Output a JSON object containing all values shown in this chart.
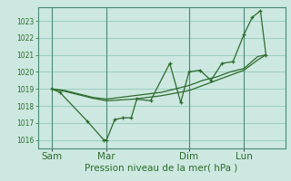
{
  "background_color": "#cce8e0",
  "grid_color": "#88c4b4",
  "line_color": "#2d6b2d",
  "marker_color": "#2d6b2d",
  "xlabel": "Pression niveau de la mer( hPa )",
  "ylim": [
    1015.5,
    1023.8
  ],
  "yticks": [
    1016,
    1017,
    1018,
    1019,
    1020,
    1021,
    1022,
    1023
  ],
  "xtick_labels": [
    "Sam",
    "Mar",
    "Dim",
    "Lun"
  ],
  "xtick_positions": [
    0.5,
    2.5,
    5.5,
    7.5
  ],
  "xlim": [
    0.0,
    9.0
  ],
  "series1_x": [
    0.5,
    0.8,
    1.8,
    2.4,
    2.5,
    2.8,
    3.1,
    3.4,
    3.6,
    4.1,
    4.8,
    5.2,
    5.5,
    5.9,
    6.3,
    6.7,
    7.1,
    7.5,
    7.8,
    8.1,
    8.3
  ],
  "series1_y": [
    1019.0,
    1018.8,
    1017.1,
    1016.0,
    1016.0,
    1017.2,
    1017.3,
    1017.3,
    1018.4,
    1018.3,
    1020.5,
    1018.2,
    1020.0,
    1020.1,
    1019.5,
    1020.5,
    1020.6,
    1022.2,
    1023.2,
    1023.6,
    1021.0
  ],
  "series2_x": [
    0.5,
    1.0,
    1.5,
    2.0,
    2.5,
    3.0,
    3.5,
    4.0,
    4.5,
    5.0,
    5.5,
    6.0,
    6.5,
    7.0,
    7.5,
    8.0,
    8.3
  ],
  "series2_y": [
    1019.0,
    1018.9,
    1018.7,
    1018.5,
    1018.4,
    1018.5,
    1018.6,
    1018.7,
    1018.8,
    1019.0,
    1019.2,
    1019.5,
    1019.7,
    1020.0,
    1020.2,
    1020.9,
    1021.0
  ],
  "series3_x": [
    0.5,
    1.0,
    1.5,
    2.0,
    2.5,
    3.0,
    3.5,
    4.0,
    4.5,
    5.0,
    5.5,
    6.0,
    6.5,
    7.0,
    7.5,
    8.0,
    8.3
  ],
  "series3_y": [
    1019.0,
    1018.85,
    1018.65,
    1018.45,
    1018.3,
    1018.35,
    1018.4,
    1018.5,
    1018.6,
    1018.75,
    1018.9,
    1019.2,
    1019.5,
    1019.8,
    1020.1,
    1020.7,
    1021.0
  ],
  "vlines_x": [
    0.5,
    2.5,
    5.5,
    7.5
  ],
  "ylabel_fontsize": 5.5,
  "xlabel_fontsize": 7.5
}
